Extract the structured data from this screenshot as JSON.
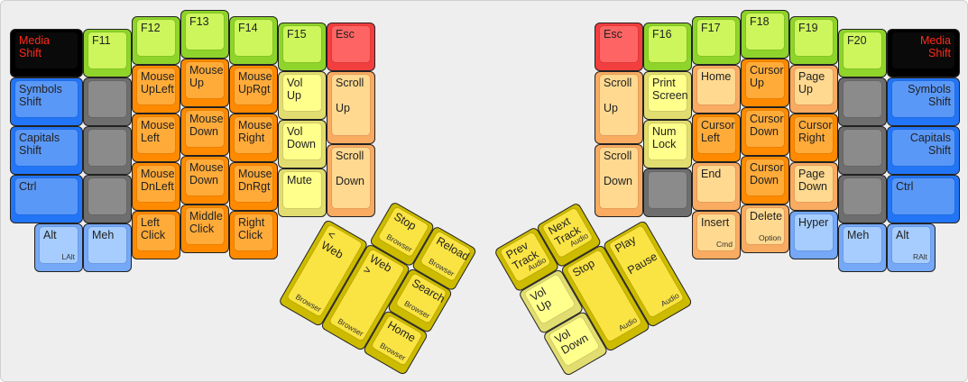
{
  "left": {
    "media_shift": {
      "label": "Media\nShift",
      "color": "black"
    },
    "symbols_shift": {
      "label": "Symbols\nShift",
      "color": "blue"
    },
    "capitals_shift": {
      "label": "Capitals\nShift",
      "color": "blue"
    },
    "ctrl": {
      "label": "Ctrl",
      "color": "blue"
    },
    "alt": {
      "label": "Alt",
      "sub": "LAlt",
      "color": "lblue"
    },
    "f11": {
      "label": "F11",
      "color": "lime"
    },
    "blank1": {
      "label": "",
      "color": "gray"
    },
    "blank2": {
      "label": "",
      "color": "gray"
    },
    "blank3": {
      "label": "",
      "color": "gray"
    },
    "meh": {
      "label": "Meh",
      "color": "lblue"
    },
    "f12": {
      "label": "F12",
      "color": "lime"
    },
    "mouse_upleft": {
      "label": "Mouse\nUpLeft",
      "color": "orange"
    },
    "mouse_left": {
      "label": "Mouse\nLeft",
      "color": "orange"
    },
    "mouse_dnleft": {
      "label": "Mouse\nDnLeft",
      "color": "orange"
    },
    "left_click": {
      "label": "Left\nClick",
      "color": "orange"
    },
    "f13": {
      "label": "F13",
      "color": "lime"
    },
    "mouse_up": {
      "label": "Mouse\nUp",
      "color": "orange"
    },
    "mouse_down": {
      "label": "Mouse\nDown",
      "color": "orange"
    },
    "mouse_down2": {
      "label": "Mouse\nDown",
      "color": "orange"
    },
    "middle_click": {
      "label": "Middle\nClick",
      "color": "orange"
    },
    "f14": {
      "label": "F14",
      "color": "lime"
    },
    "mouse_uprgt": {
      "label": "Mouse\nUpRgt",
      "color": "orange"
    },
    "mouse_right": {
      "label": "Mouse\nRight",
      "color": "orange"
    },
    "mouse_dnrgt": {
      "label": "Mouse\nDnRgt",
      "color": "orange"
    },
    "right_click": {
      "label": "Right\nClick",
      "color": "orange"
    },
    "f15": {
      "label": "F15",
      "color": "lime"
    },
    "vol_up": {
      "label": "Vol\nUp",
      "color": "lyellow"
    },
    "vol_down": {
      "label": "Vol\nDown",
      "color": "lyellow"
    },
    "mute": {
      "label": "Mute",
      "color": "lyellow"
    },
    "esc": {
      "label": "Esc",
      "color": "red"
    },
    "scroll_up": {
      "label": "Scroll\n\nUp",
      "color": "peach"
    },
    "scroll_down": {
      "label": "Scroll\n\nDown",
      "color": "peach"
    }
  },
  "left_thumb": {
    "stop": {
      "label": "Stop",
      "sub": "Browser",
      "color": "yellow"
    },
    "reload": {
      "label": "Reload",
      "sub": "Browser",
      "color": "yellow"
    },
    "web_back": {
      "label": "< Web",
      "sub": "Browser",
      "color": "yellow"
    },
    "web_forward": {
      "label": "Web >",
      "sub": "Browser",
      "color": "yellow"
    },
    "search": {
      "label": "Search",
      "sub": "Browser",
      "color": "yellow"
    },
    "home": {
      "label": "Home",
      "sub": "Browser",
      "color": "yellow"
    }
  },
  "right": {
    "esc": {
      "label": "Esc",
      "color": "red"
    },
    "scroll_up": {
      "label": "Scroll\n\nUp",
      "color": "peach"
    },
    "scroll_down": {
      "label": "Scroll\n\nDown",
      "color": "peach"
    },
    "f16": {
      "label": "F16",
      "color": "lime"
    },
    "print_screen": {
      "label": "Print\nScreen",
      "color": "lyellow"
    },
    "num_lock": {
      "label": "Num\nLock",
      "color": "lyellow"
    },
    "blank0": {
      "label": "",
      "color": "gray"
    },
    "f17": {
      "label": "F17",
      "color": "lime"
    },
    "home": {
      "label": "Home",
      "color": "peach"
    },
    "cursor_left": {
      "label": "Cursor\nLeft",
      "color": "orange"
    },
    "end": {
      "label": "End",
      "color": "peach"
    },
    "insert": {
      "label": "Insert",
      "sub": "Cmd",
      "color": "peach"
    },
    "f18": {
      "label": "F18",
      "color": "lime"
    },
    "cursor_up": {
      "label": "Cursor\nUp",
      "color": "orange"
    },
    "cursor_down": {
      "label": "Cursor\nDown",
      "color": "orange"
    },
    "cursor_down2": {
      "label": "Cursor\nDown",
      "color": "orange"
    },
    "delete": {
      "label": "Delete",
      "sub": "Option",
      "color": "peach"
    },
    "f19": {
      "label": "F19",
      "color": "lime"
    },
    "page_up": {
      "label": "Page\nUp",
      "color": "peach"
    },
    "cursor_right": {
      "label": "Cursor\nRight",
      "color": "orange"
    },
    "page_down": {
      "label": "Page\nDown",
      "color": "peach"
    },
    "hyper": {
      "label": "Hyper",
      "color": "lblue"
    },
    "f20": {
      "label": "F20",
      "color": "lime"
    },
    "blank1": {
      "label": "",
      "color": "gray"
    },
    "blank2": {
      "label": "",
      "color": "gray"
    },
    "blank3": {
      "label": "",
      "color": "gray"
    },
    "meh": {
      "label": "Meh",
      "color": "lblue"
    },
    "media_shift": {
      "label": "Media\nShift",
      "color": "black"
    },
    "symbols_shift": {
      "label": "Symbols\nShift",
      "color": "blue"
    },
    "capitals_shift": {
      "label": "Capitals\nShift",
      "color": "blue"
    },
    "ctrl": {
      "label": "Ctrl",
      "color": "blue"
    },
    "alt": {
      "label": "Alt",
      "sub": "RAlt",
      "color": "lblue"
    }
  },
  "right_thumb": {
    "prev_track": {
      "label": "Prev\nTrack",
      "sub": "Audio",
      "color": "yellow"
    },
    "next_track": {
      "label": "Next\nTrack",
      "sub": "Audio",
      "color": "yellow"
    },
    "vol_up": {
      "label": "Vol\nUp",
      "color": "lyellow"
    },
    "vol_down": {
      "label": "Vol\nDown",
      "color": "lyellow"
    },
    "stop": {
      "label": "Stop",
      "sub": "Audio",
      "color": "yellow"
    },
    "play_pause": {
      "label": "Play\n\nPause",
      "sub": "Audio",
      "color": "yellow"
    }
  }
}
